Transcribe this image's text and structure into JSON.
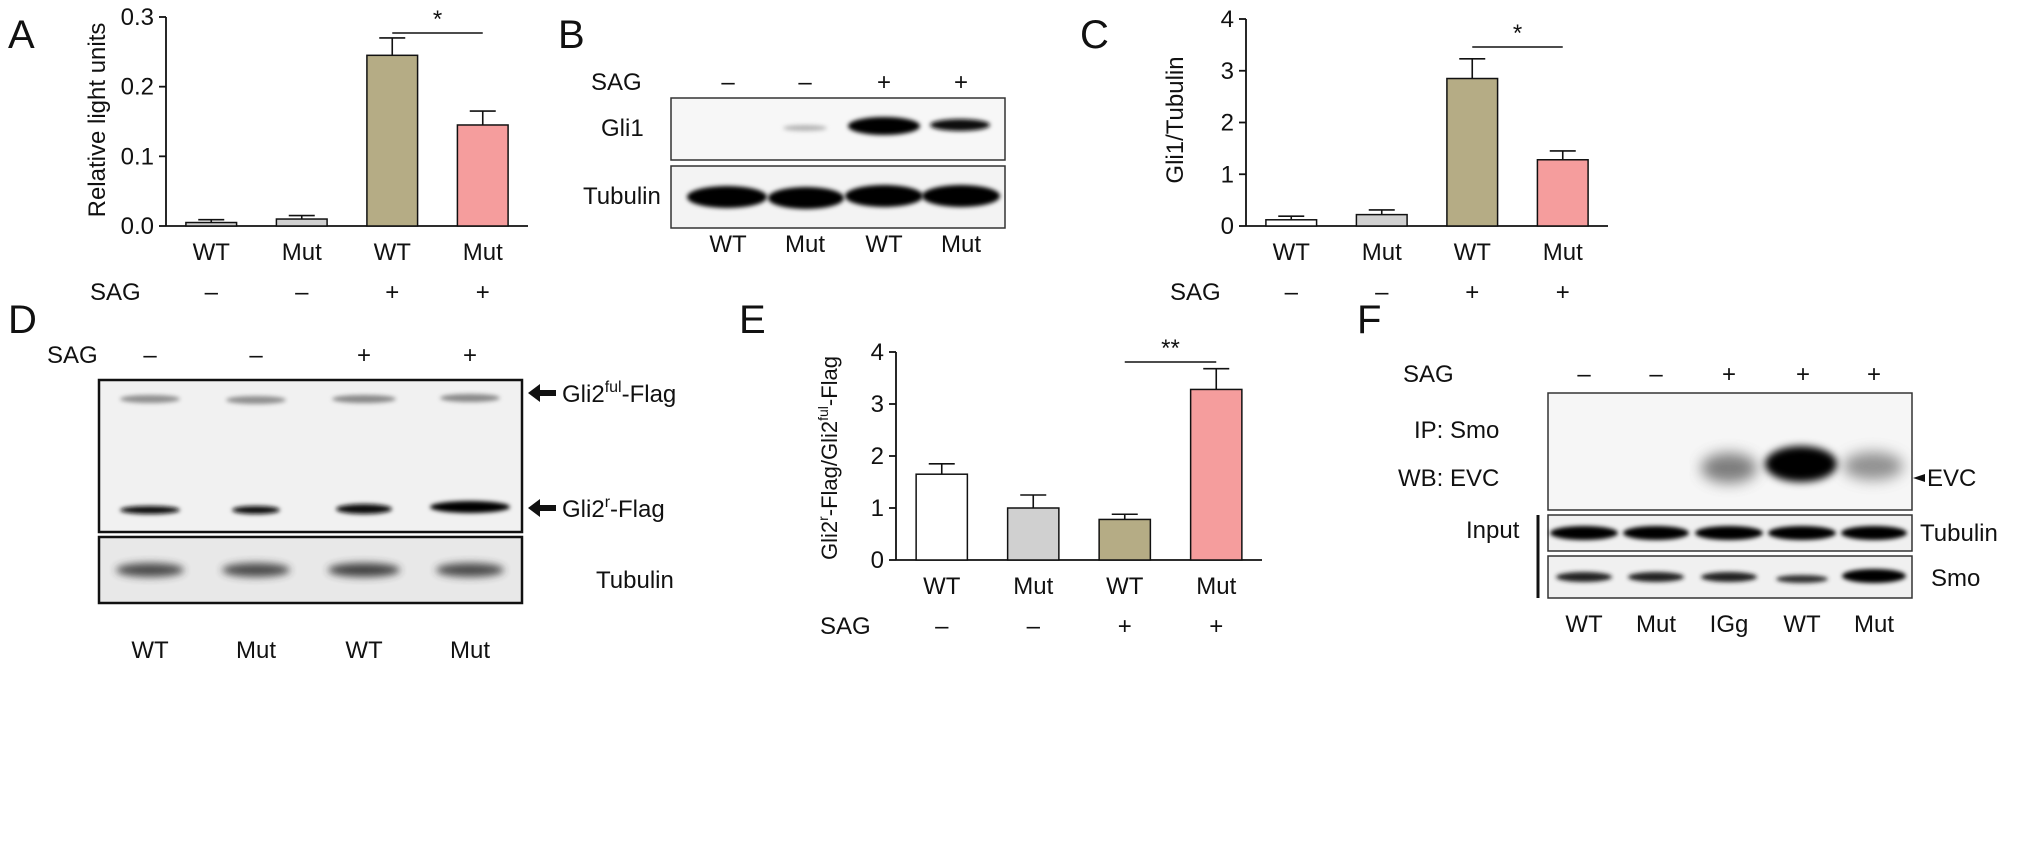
{
  "panels": {
    "A": {
      "letter": "A",
      "chart_data": {
        "type": "bar",
        "ylabel": "Relative light units",
        "ylim": [
          0,
          0.3
        ],
        "yticks": [
          "0.0",
          "0.1",
          "0.2",
          "0.3"
        ],
        "categories": [
          "WT",
          "Mut",
          "WT",
          "Mut"
        ],
        "values": [
          0.005,
          0.01,
          0.245,
          0.145
        ],
        "errors": [
          0.004,
          0.005,
          0.025,
          0.02
        ],
        "colors": [
          "#d0d0d0",
          "#d0d0d0",
          "#b5ac85",
          "#f59d9d"
        ],
        "sag_label": "SAG",
        "sag": [
          "–",
          "–",
          "+",
          "+"
        ],
        "significance": {
          "from": 2,
          "to": 3,
          "label": "*"
        }
      }
    },
    "B": {
      "letter": "B",
      "sag_label": "SAG",
      "sag": [
        "–",
        "–",
        "+",
        "+"
      ],
      "rows": [
        "Gli1",
        "Tubulin"
      ],
      "lanes": [
        "WT",
        "Mut",
        "WT",
        "Mut"
      ]
    },
    "C": {
      "letter": "C",
      "chart_data": {
        "type": "bar",
        "ylabel": "Gli1/Tubulin",
        "ylim": [
          0,
          4
        ],
        "yticks": [
          "0",
          "1",
          "2",
          "3",
          "4"
        ],
        "categories": [
          "WT",
          "Mut",
          "WT",
          "Mut"
        ],
        "values": [
          0.12,
          0.22,
          2.85,
          1.28
        ],
        "errors": [
          0.07,
          0.09,
          0.38,
          0.17
        ],
        "colors": [
          "#ffffff",
          "#d0d0d0",
          "#b5ac85",
          "#f59d9d"
        ],
        "sag_label": "SAG",
        "sag": [
          "–",
          "–",
          "+",
          "+"
        ],
        "significance": {
          "from": 2,
          "to": 3,
          "label": "*"
        }
      }
    },
    "D": {
      "letter": "D",
      "sag_label": "SAG",
      "sag": [
        "–",
        "–",
        "+",
        "+"
      ],
      "band_full": "Gli2",
      "band_full_sup": "ful",
      "band_full_suffix": "-Flag",
      "band_r": "Gli2",
      "band_r_sup": "r",
      "band_r_suffix": "-Flag",
      "tubulin": "Tubulin",
      "lanes": [
        "WT",
        "Mut",
        "WT",
        "Mut"
      ]
    },
    "E": {
      "letter": "E",
      "chart_data": {
        "type": "bar",
        "ylabel_main": "Gli2",
        "ylabel_sup1": "r",
        "ylabel_mid": "-Flag/Gli2",
        "ylabel_sup2": "ful",
        "ylabel_end": "-Flag",
        "ylim": [
          0,
          4
        ],
        "yticks": [
          "0",
          "1",
          "2",
          "3",
          "4"
        ],
        "categories": [
          "WT",
          "Mut",
          "WT",
          "Mut"
        ],
        "values": [
          1.65,
          1.0,
          0.78,
          3.28
        ],
        "errors": [
          0.2,
          0.25,
          0.1,
          0.4
        ],
        "colors": [
          "#ffffff",
          "#d0d0d0",
          "#b5ac85",
          "#f59d9d"
        ],
        "sag_label": "SAG",
        "sag": [
          "–",
          "–",
          "+",
          "+"
        ],
        "significance": {
          "from": 2,
          "to": 3,
          "label": "**"
        }
      }
    },
    "F": {
      "letter": "F",
      "sag_label": "SAG",
      "sag": [
        "–",
        "–",
        "+",
        "+",
        "+"
      ],
      "ip": "IP: Smo",
      "wb": "WB: EVC",
      "evc": "EVC",
      "input": "Input",
      "tubulin": "Tubulin",
      "smo": "Smo",
      "lanes": [
        "WT",
        "Mut",
        "IGg",
        "WT",
        "Mut"
      ]
    }
  }
}
